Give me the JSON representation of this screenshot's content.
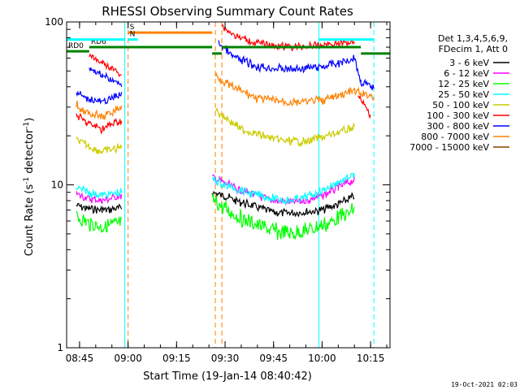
{
  "chart_data": {
    "type": "line",
    "title": "RHESSI Observing Summary Count Rates",
    "xlabel": "Start Time (19-Jan-14 08:40:42)",
    "ylabel": "Count Rate (s",
    "ylabel_sup": "-1",
    "ylabel_tail": " detector",
    "ylabel_sup2": "-1",
    "ylabel_end": ")",
    "yscale": "log",
    "ylim": [
      1,
      100
    ],
    "xlim": [
      "08:41",
      "10:21"
    ],
    "x_ticks": [
      "08:45",
      "09:00",
      "09:15",
      "09:30",
      "09:45",
      "10:00",
      "10:15"
    ],
    "y_ticks": [
      "1",
      "10",
      "100"
    ],
    "legend": {
      "position": "right",
      "header_line1": "Det 1,3,4,5,6,9,",
      "header_line2": "FDecim 1, Att 0"
    },
    "series": [
      {
        "name": "3 - 6 keV",
        "color": "#000000",
        "segments": [
          [
            [
              "08:44",
              7.5
            ],
            [
              "08:47",
              7.2
            ],
            [
              "08:52",
              7.0
            ],
            [
              "08:58",
              7.2
            ]
          ],
          [
            [
              "09:26",
              9.0
            ],
            [
              "09:30",
              8.5
            ],
            [
              "09:35",
              7.8
            ],
            [
              "09:45",
              6.8
            ],
            [
              "09:50",
              6.7
            ],
            [
              "09:55",
              6.8
            ],
            [
              "10:00",
              7.0
            ],
            [
              "10:05",
              7.6
            ],
            [
              "10:10",
              8.5
            ]
          ]
        ]
      },
      {
        "name": "6 - 12 keV",
        "color": "#ff00ff",
        "segments": [
          [
            [
              "08:44",
              8.8
            ],
            [
              "08:47",
              8.3
            ],
            [
              "08:52",
              8.0
            ],
            [
              "08:58",
              8.6
            ]
          ],
          [
            [
              "09:26",
              11.2
            ],
            [
              "09:30",
              10.2
            ],
            [
              "09:35",
              9.2
            ],
            [
              "09:45",
              8.0
            ],
            [
              "09:50",
              7.8
            ],
            [
              "09:55",
              8.0
            ],
            [
              "10:00",
              8.6
            ],
            [
              "10:05",
              9.6
            ],
            [
              "10:10",
              10.8
            ]
          ]
        ]
      },
      {
        "name": "12 - 25 keV",
        "color": "#00ff00",
        "segments": [
          [
            [
              "08:44",
              6.5
            ],
            [
              "08:47",
              5.9
            ],
            [
              "08:52",
              5.5
            ],
            [
              "08:58",
              5.8
            ]
          ],
          [
            [
              "09:26",
              8.0
            ],
            [
              "09:30",
              7.2
            ],
            [
              "09:35",
              6.2
            ],
            [
              "09:45",
              5.2
            ],
            [
              "09:50",
              5.0
            ],
            [
              "09:55",
              5.2
            ],
            [
              "10:00",
              5.6
            ],
            [
              "10:05",
              6.2
            ],
            [
              "10:10",
              7.0
            ]
          ]
        ]
      },
      {
        "name": "25 - 50 keV",
        "color": "#00ffff",
        "segments": [
          [
            [
              "08:44",
              9.6
            ],
            [
              "08:47",
              9.1
            ],
            [
              "08:52",
              8.6
            ],
            [
              "08:58",
              9.0
            ]
          ],
          [
            [
              "09:26",
              10.8
            ],
            [
              "09:30",
              10.0
            ],
            [
              "09:35",
              9.2
            ],
            [
              "09:45",
              8.2
            ],
            [
              "09:50",
              8.0
            ],
            [
              "09:55",
              8.4
            ],
            [
              "10:00",
              9.2
            ],
            [
              "10:05",
              10.3
            ],
            [
              "10:10",
              11.6
            ]
          ]
        ]
      },
      {
        "name": "50 - 100 keV",
        "color": "#cccc00",
        "segments": [
          [
            [
              "08:44",
              19
            ],
            [
              "08:47",
              17.5
            ],
            [
              "08:52",
              16
            ],
            [
              "08:58",
              17
            ]
          ],
          [
            [
              "09:27",
              29
            ],
            [
              "09:30",
              26
            ],
            [
              "09:35",
              22
            ],
            [
              "09:45",
              19
            ],
            [
              "09:50",
              18.5
            ],
            [
              "09:55",
              18.5
            ],
            [
              "10:00",
              19.5
            ],
            [
              "10:05",
              21
            ],
            [
              "10:10",
              22.5
            ]
          ]
        ]
      },
      {
        "name": "100 - 300 keV",
        "color": "#ff0000",
        "segments": [
          [
            [
              "08:44",
              27
            ],
            [
              "08:47",
              24
            ],
            [
              "08:52",
              22
            ],
            [
              "08:58",
              25
            ]
          ],
          [
            [
              "10:11",
              35
            ],
            [
              "10:15",
              27
            ]
          ]
        ]
      },
      {
        "name": "300 - 800 keV",
        "color": "#0000ff",
        "segments": [
          [
            [
              "08:44",
              37
            ],
            [
              "08:47",
              34
            ],
            [
              "08:52",
              32
            ],
            [
              "08:58",
              36
            ]
          ],
          [
            [
              "09:28",
              75
            ],
            [
              "09:32",
              62
            ],
            [
              "09:40",
              53
            ],
            [
              "09:50",
              51
            ],
            [
              "10:00",
              53
            ],
            [
              "10:05",
              56
            ],
            [
              "10:10",
              60
            ],
            [
              "10:12",
              43
            ],
            [
              "10:16",
              39
            ]
          ]
        ]
      },
      {
        "name": "800 - 7000 keV",
        "color": "#ff8000",
        "segments": [
          [
            [
              "08:44",
              31
            ],
            [
              "08:47",
              28
            ],
            [
              "08:52",
              26
            ],
            [
              "08:58",
              30
            ]
          ],
          [
            [
              "09:27",
              47
            ],
            [
              "09:32",
              40
            ],
            [
              "09:40",
              34
            ],
            [
              "09:50",
              32
            ],
            [
              "10:00",
              33
            ],
            [
              "10:05",
              35
            ],
            [
              "10:10",
              38
            ],
            [
              "10:12",
              36
            ],
            [
              "10:16",
              35
            ]
          ]
        ]
      },
      {
        "name": "7000 - 15000 keV",
        "color": "#884400",
        "segments": []
      }
    ],
    "upper_curves": [
      {
        "color": "#ff0000",
        "segments": [
          [
            [
              "08:48",
              62
            ],
            [
              "08:52",
              56
            ],
            [
              "08:58",
              48
            ]
          ],
          [
            [
              "09:29",
              95
            ],
            [
              "09:33",
              82
            ],
            [
              "09:40",
              74
            ],
            [
              "09:50",
              70
            ],
            [
              "10:00",
              72
            ],
            [
              "10:05",
              74
            ],
            [
              "10:10",
              76
            ]
          ]
        ]
      },
      {
        "name": "blue upper",
        "color": "#0000ff",
        "segments": [
          [
            [
              "08:48",
              52
            ],
            [
              "08:52",
              47
            ],
            [
              "08:58",
              41
            ]
          ]
        ]
      }
    ],
    "state_bars": [
      {
        "label": "RD0",
        "color": "#008000",
        "y": 66,
        "x_start": "08:41",
        "x_end": "08:48"
      },
      {
        "label": "RD6",
        "color": "#008000",
        "y": 70,
        "x_start": "08:48",
        "x_end": "09:26"
      },
      {
        "label": "",
        "color": "#008000",
        "y": 64,
        "x_start": "09:26",
        "x_end": "09:29"
      },
      {
        "label": "",
        "color": "#008000",
        "y": 70,
        "x_start": "09:29",
        "x_end": "10:12"
      },
      {
        "label": "",
        "color": "#008000",
        "y": 64,
        "x_start": "10:12",
        "x_end": "10:21"
      },
      {
        "label": "",
        "color": "#00ffff",
        "y": 78,
        "x_start": "08:41",
        "x_end": "08:59"
      },
      {
        "label": "",
        "color": "#00ffff",
        "y": 78,
        "x_start": "09:59",
        "x_end": "10:16"
      },
      {
        "label": "S",
        "color": "#ff8000",
        "y": 86,
        "x_start": "09:00",
        "x_end": "09:26"
      },
      {
        "label": "N",
        "color": "#00ffff",
        "y": 78,
        "x_start": "09:00",
        "x_end": "09:03"
      }
    ],
    "vertical_markers": [
      {
        "time": "08:41",
        "color": "#00ffff",
        "style": "solid"
      },
      {
        "time": "08:59",
        "color": "#00ffff",
        "style": "solid"
      },
      {
        "time": "09:00",
        "color": "#ff8000",
        "style": "dashed"
      },
      {
        "time": "09:27",
        "color": "#ff8000",
        "style": "dashed"
      },
      {
        "time": "09:29",
        "color": "#ff8000",
        "style": "dashed"
      },
      {
        "time": "09:59",
        "color": "#00ffff",
        "style": "solid"
      },
      {
        "time": "10:16",
        "color": "#00ffff",
        "style": "dashed"
      }
    ],
    "grid": false
  },
  "footer": {
    "timestamp": "19-Oct-2021 02:03"
  }
}
